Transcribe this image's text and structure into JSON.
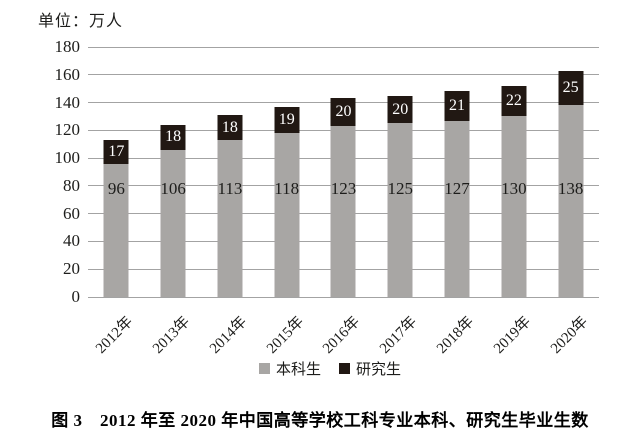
{
  "figure": {
    "unit_label": "单位：万人",
    "caption": "图 3　2012 年至 2020 年中国高等学校工科专业本科、研究生毕业生数"
  },
  "legend": {
    "items": [
      {
        "label": "本科生",
        "color": "#a8a6a4"
      },
      {
        "label": "研究生",
        "color": "#211813"
      }
    ]
  },
  "chart_data": {
    "type": "bar",
    "stacked": true,
    "title": "图 3　2012 年至 2020 年中国高等学校工科专业本科、研究生毕业生数",
    "unit_label": "单位：万人",
    "categories": [
      "2012年",
      "2013年",
      "2014年",
      "2015年",
      "2016年",
      "2017年",
      "2018年",
      "2019年",
      "2020年"
    ],
    "series": [
      {
        "name": "本科生",
        "color": "#a8a6a4",
        "label_color": "#1d1d1b",
        "values": [
          96,
          106,
          113,
          118,
          123,
          125,
          127,
          130,
          138
        ]
      },
      {
        "name": "研究生",
        "color": "#211813",
        "label_color": "#ffffff",
        "values": [
          17,
          18,
          18,
          19,
          20,
          20,
          21,
          22,
          25
        ]
      }
    ],
    "ylim": [
      0,
      180
    ],
    "yticks": [
      0,
      20,
      40,
      60,
      80,
      100,
      120,
      140,
      160,
      180
    ],
    "grid": true,
    "gridline_color": "#a3a3a3",
    "legend_position": "bottom",
    "xlabel": "",
    "ylabel": ""
  }
}
